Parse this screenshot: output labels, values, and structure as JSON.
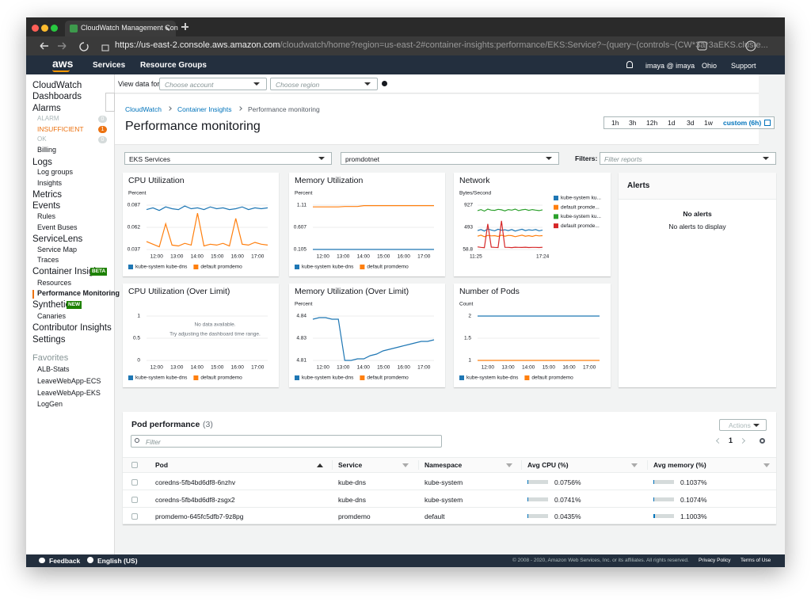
{
  "browser": {
    "tab_title": "CloudWatch Management Con",
    "url_host": "https://us-east-2.console.aws.amazon.com",
    "url_path": "/cloudwatch/home?region=us-east-2#container-insights:performance/EKS:Service?~(query~(controls~(CW*3a*3aEKS.cluste..."
  },
  "nav": {
    "logo": "aws",
    "services": "Services",
    "resource_groups": "Resource Groups",
    "account": "imaya @ imaya",
    "region": "Ohio",
    "support": "Support"
  },
  "sidebar": {
    "items": [
      "CloudWatch",
      "Dashboards",
      "Alarms",
      "ALARM",
      "INSUFFICIENT",
      "OK",
      "Billing",
      "Logs",
      "Log groups",
      "Insights",
      "Metrics",
      "Events",
      "Rules",
      "Event Buses",
      "ServiceLens",
      "Service Map",
      "Traces",
      "Container Insights",
      "Resources",
      "Performance Monitoring",
      "Synthetics",
      "Canaries",
      "Contributor Insights",
      "Settings"
    ],
    "badges": [
      0,
      1,
      0
    ],
    "beta": "BETA",
    "new": "NEW",
    "favorites_heading": "Favorites",
    "favorites": [
      "ALB-Stats",
      "LeaveWebApp-ECS",
      "LeaveWebApp-EKS",
      "LogGen"
    ]
  },
  "toolbar": {
    "label": "View data for:",
    "account_placeholder": "Choose account",
    "region_placeholder": "Choose region"
  },
  "header": {
    "breadcrumb": [
      "CloudWatch",
      "Container Insights",
      "Performance monitoring"
    ],
    "title": "Performance monitoring",
    "time_ranges": [
      "1h",
      "3h",
      "12h",
      "1d",
      "3d",
      "1w",
      "custom (6h)"
    ]
  },
  "filters": {
    "view": "EKS Services",
    "service": "promdotnet",
    "label": "Filters:",
    "placeholder": "Filter reports"
  },
  "widgets": [
    {
      "title": "CPU Utilization",
      "unit": "Percent",
      "ylim": [
        0.037,
        0.087
      ],
      "yticks": [
        0.087,
        0.062,
        0.037
      ],
      "xticks": [
        "12:00",
        "13:00",
        "14:00",
        "15:00",
        "16:00",
        "17:00"
      ],
      "series": [
        {
          "name": "kube-system kube-dns",
          "color": "#1f77b4",
          "values": [
            0.082,
            0.084,
            0.081,
            0.085,
            0.083,
            0.082,
            0.086,
            0.083,
            0.084,
            0.082,
            0.085,
            0.083,
            0.084,
            0.082,
            0.083,
            0.085,
            0.082,
            0.084,
            0.083,
            0.084
          ]
        },
        {
          "name": "default promdemo",
          "color": "#ff7f0e",
          "values": [
            0.046,
            0.043,
            0.04,
            0.066,
            0.042,
            0.041,
            0.044,
            0.042,
            0.078,
            0.041,
            0.043,
            0.042,
            0.044,
            0.041,
            0.072,
            0.043,
            0.042,
            0.045,
            0.043,
            0.042
          ]
        }
      ]
    },
    {
      "title": "Memory Utilization",
      "unit": "Percent",
      "ylim": [
        0.105,
        1.11
      ],
      "yticks": [
        1.11,
        0.607,
        0.105
      ],
      "xticks": [
        "12:00",
        "13:00",
        "14:00",
        "15:00",
        "16:00",
        "17:00"
      ],
      "series": [
        {
          "name": "kube-system kube-dns",
          "color": "#1f77b4",
          "values": [
            0.107,
            0.107,
            0.107,
            0.107,
            0.107,
            0.107,
            0.107,
            0.107,
            0.107,
            0.107,
            0.107,
            0.107,
            0.107,
            0.107,
            0.107,
            0.107,
            0.107,
            0.107,
            0.107,
            0.107
          ]
        },
        {
          "name": "default promdemo",
          "color": "#ff7f0e",
          "values": [
            1.07,
            1.07,
            1.07,
            1.07,
            1.07,
            1.08,
            1.08,
            1.08,
            1.1,
            1.1,
            1.1,
            1.1,
            1.1,
            1.1,
            1.1,
            1.1,
            1.1,
            1.1,
            1.1,
            1.1
          ]
        }
      ]
    },
    {
      "title": "Network",
      "unit": "Bytes/Second",
      "ylim": [
        58.8,
        927
      ],
      "yticks": [
        927,
        493,
        58.8
      ],
      "xticks": [
        "11:25",
        "17:24"
      ],
      "series": [
        {
          "name": "kube-system ku...",
          "color": "#1f77b4",
          "values": [
            430,
            450,
            420,
            460,
            440,
            425,
            455,
            435,
            445,
            430,
            450,
            420,
            440,
            455,
            430,
            445,
            435,
            450,
            425,
            440
          ]
        },
        {
          "name": "default promde...",
          "color": "#ff7f0e",
          "values": [
            320,
            340,
            310,
            335,
            325,
            330,
            315,
            340,
            320,
            335,
            330,
            310,
            325,
            340,
            320,
            330,
            315,
            335,
            325,
            330
          ]
        },
        {
          "name": "kube-system ku...",
          "color": "#2ca02c",
          "values": [
            820,
            840,
            810,
            850,
            830,
            825,
            845,
            835,
            815,
            840,
            830,
            850,
            820,
            835,
            845,
            825,
            840,
            830,
            820,
            835
          ]
        },
        {
          "name": "default promde...",
          "color": "#d62728",
          "values": [
            110,
            100,
            95,
            560,
            105,
            100,
            98,
            620,
            102,
            100,
            96,
            104,
            100,
            99,
            103,
            97,
            101,
            100,
            98,
            102
          ]
        }
      ]
    },
    {
      "title": "CPU Utilization (Over Limit)",
      "ylim": [
        0,
        1
      ],
      "yticks": [
        1,
        0.5,
        0
      ],
      "xticks": [
        "12:00",
        "13:00",
        "14:00",
        "15:00",
        "16:00",
        "17:00"
      ],
      "no_data": [
        "No data available.",
        "Try adjusting the dashboard time range."
      ],
      "series": [
        {
          "name": "kube-system kube-dns",
          "color": "#1f77b4",
          "values": []
        },
        {
          "name": "default promdemo",
          "color": "#ff7f0e",
          "values": []
        }
      ]
    },
    {
      "title": "Memory Utilization (Over Limit)",
      "unit": "Percent",
      "ylim": [
        4.812,
        4.84
      ],
      "yticks": [
        4.84,
        {
          "value": 4.826,
          "label": "4.83"
        },
        {
          "value": 4.812,
          "label": "4.81"
        }
      ],
      "xticks": [
        "12:00",
        "13:00",
        "14:00",
        "15:00",
        "16:00",
        "17:00"
      ],
      "series": [
        {
          "name": "kube-system kube-dns",
          "color": "#1f77b4",
          "values": [
            4.838,
            4.839,
            4.839,
            4.838,
            4.838,
            4.812,
            4.812,
            4.813,
            4.813,
            4.815,
            4.816,
            4.818,
            4.819,
            4.82,
            4.821,
            4.822,
            4.823,
            4.824,
            4.824,
            4.825
          ]
        },
        {
          "name": "default promdemo",
          "color": "#ff7f0e",
          "values": []
        }
      ]
    },
    {
      "title": "Number of Pods",
      "unit": "Count",
      "ylim": [
        1,
        2
      ],
      "yticks": [
        2,
        1.5,
        1
      ],
      "xticks": [
        "12:00",
        "13:00",
        "14:00",
        "15:00",
        "16:00",
        "17:00"
      ],
      "series": [
        {
          "name": "kube-system kube-dns",
          "color": "#1f77b4",
          "values": [
            2,
            2,
            2,
            2,
            2,
            2,
            2,
            2,
            2,
            2,
            2,
            2,
            2,
            2,
            2,
            2,
            2,
            2,
            2,
            2
          ]
        },
        {
          "name": "default promdemo",
          "color": "#ff7f0e",
          "values": [
            1,
            1,
            1,
            1,
            1,
            1,
            1,
            1,
            1,
            1,
            1,
            1,
            1,
            1,
            1,
            1,
            1,
            1,
            1,
            1
          ]
        }
      ]
    }
  ],
  "alerts": {
    "title": "Alerts",
    "empty_title": "No alerts",
    "empty_text": "No alerts to display"
  },
  "pod_table": {
    "title": "Pod performance",
    "count": "(3)",
    "actions": "Actions",
    "filter_placeholder": "Filter",
    "page": 1,
    "columns": [
      "Pod",
      "Service",
      "Namespace",
      "Avg CPU (%)",
      "Avg memory (%)"
    ],
    "rows": [
      [
        "coredns-5fb4bd6df8-6nzhv",
        "kube-dns",
        "kube-system",
        {
          "value": 0.0756,
          "label": "0.0756%"
        },
        {
          "value": 0.1037,
          "label": "0.1037%"
        }
      ],
      [
        "coredns-5fb4bd6df8-zsgx2",
        "kube-dns",
        "kube-system",
        {
          "value": 0.0741,
          "label": "0.0741%"
        },
        {
          "value": 0.1074,
          "label": "0.1074%"
        }
      ],
      [
        "promdemo-645fc5dfb7-9z8pg",
        "promdemo",
        "default",
        {
          "value": 0.0435,
          "label": "0.0435%"
        },
        {
          "value": 1.1003,
          "label": "1.1003%"
        }
      ]
    ]
  },
  "footer": {
    "feedback": "Feedback",
    "language": "English (US)",
    "copyright": "© 2008 - 2020, Amazon Web Services, Inc. or its affiliates. All rights reserved.",
    "privacy": "Privacy Policy",
    "terms": "Terms of Use"
  }
}
